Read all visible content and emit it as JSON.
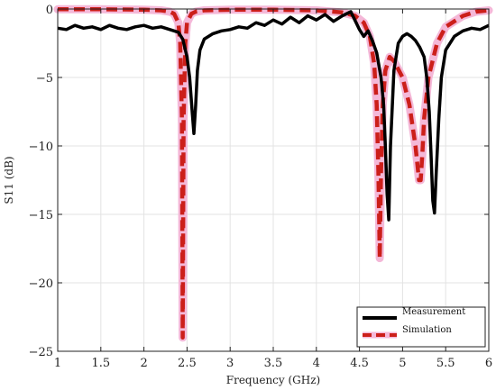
{
  "chart_data": {
    "type": "line",
    "xlabel": "Frequency (GHz)",
    "ylabel": "S11 (dB)",
    "xlim": [
      1,
      6
    ],
    "ylim": [
      -25,
      0
    ],
    "xticks": [
      1,
      1.5,
      2,
      2.5,
      3,
      3.5,
      4,
      4.5,
      5,
      5.5,
      6
    ],
    "xtick_labels": [
      "1",
      "1.5",
      "2",
      "2.5",
      "3",
      "3.5",
      "4",
      "4.5",
      "5",
      "5.5",
      "6"
    ],
    "yticks": [
      0,
      -5,
      -10,
      -15,
      -20,
      -25
    ],
    "ytick_labels": [
      "0",
      "−5",
      "−10",
      "−15",
      "−20",
      "−25"
    ],
    "grid": true,
    "legend_position": "bottom-right",
    "colors": {
      "measurement": "#000000",
      "simulation": "#cc1f1a",
      "simulation_halo": "#f4b8d8"
    },
    "series": [
      {
        "name": "Measurement",
        "x": [
          1.0,
          1.1,
          1.2,
          1.3,
          1.4,
          1.5,
          1.6,
          1.7,
          1.8,
          1.9,
          2.0,
          2.1,
          2.2,
          2.3,
          2.4,
          2.45,
          2.5,
          2.53,
          2.56,
          2.58,
          2.6,
          2.62,
          2.65,
          2.7,
          2.8,
          2.9,
          3.0,
          3.1,
          3.2,
          3.3,
          3.4,
          3.5,
          3.6,
          3.7,
          3.8,
          3.9,
          4.0,
          4.1,
          4.2,
          4.3,
          4.4,
          4.5,
          4.55,
          4.6,
          4.65,
          4.7,
          4.75,
          4.78,
          4.8,
          4.82,
          4.84,
          4.86,
          4.9,
          4.95,
          5.0,
          5.05,
          5.1,
          5.15,
          5.2,
          5.25,
          5.28,
          5.31,
          5.33,
          5.35,
          5.37,
          5.39,
          5.42,
          5.45,
          5.5,
          5.6,
          5.7,
          5.8,
          5.9,
          6.0
        ],
        "y": [
          -1.4,
          -1.5,
          -1.2,
          -1.4,
          -1.3,
          -1.5,
          -1.2,
          -1.4,
          -1.5,
          -1.3,
          -1.2,
          -1.4,
          -1.3,
          -1.5,
          -1.7,
          -2.2,
          -3.5,
          -5.0,
          -7.5,
          -9.1,
          -7.0,
          -4.5,
          -3.0,
          -2.2,
          -1.8,
          -1.6,
          -1.5,
          -1.3,
          -1.4,
          -1.0,
          -1.2,
          -0.8,
          -1.1,
          -0.6,
          -1.0,
          -0.5,
          -0.8,
          -0.4,
          -0.9,
          -0.5,
          -0.2,
          -1.5,
          -2.0,
          -1.6,
          -2.3,
          -3.2,
          -5.0,
          -7.0,
          -10.0,
          -13.5,
          -15.4,
          -10.0,
          -4.5,
          -2.5,
          -2.0,
          -1.8,
          -2.0,
          -2.3,
          -2.8,
          -3.5,
          -5.0,
          -7.5,
          -10.5,
          -14.0,
          -14.9,
          -12.0,
          -8.0,
          -5.0,
          -3.0,
          -2.0,
          -1.6,
          -1.4,
          -1.5,
          -1.2
        ]
      },
      {
        "name": "Simulation",
        "x": [
          1.0,
          1.5,
          2.0,
          2.2,
          2.3,
          2.35,
          2.4,
          2.42,
          2.44,
          2.45,
          2.46,
          2.48,
          2.5,
          2.55,
          2.6,
          2.7,
          3.0,
          3.5,
          4.0,
          4.3,
          4.45,
          4.55,
          4.62,
          4.67,
          4.7,
          4.72,
          4.735,
          4.75,
          4.77,
          4.8,
          4.85,
          4.9,
          5.0,
          5.08,
          5.15,
          5.19,
          5.21,
          5.23,
          5.25,
          5.3,
          5.4,
          5.5,
          5.7,
          5.85,
          6.0
        ],
        "y": [
          -0.02,
          -0.02,
          -0.05,
          -0.1,
          -0.2,
          -0.35,
          -1.0,
          -2.5,
          -8.0,
          -24.0,
          -8.0,
          -2.5,
          -1.0,
          -0.35,
          -0.2,
          -0.1,
          -0.05,
          -0.05,
          -0.1,
          -0.25,
          -0.5,
          -1.0,
          -2.0,
          -4.0,
          -7.0,
          -12.0,
          -18.2,
          -12.0,
          -7.0,
          -4.5,
          -3.5,
          -3.8,
          -5.0,
          -7.0,
          -10.0,
          -12.5,
          -12.5,
          -10.5,
          -8.0,
          -5.0,
          -2.5,
          -1.3,
          -0.5,
          -0.2,
          -0.1
        ]
      }
    ]
  }
}
